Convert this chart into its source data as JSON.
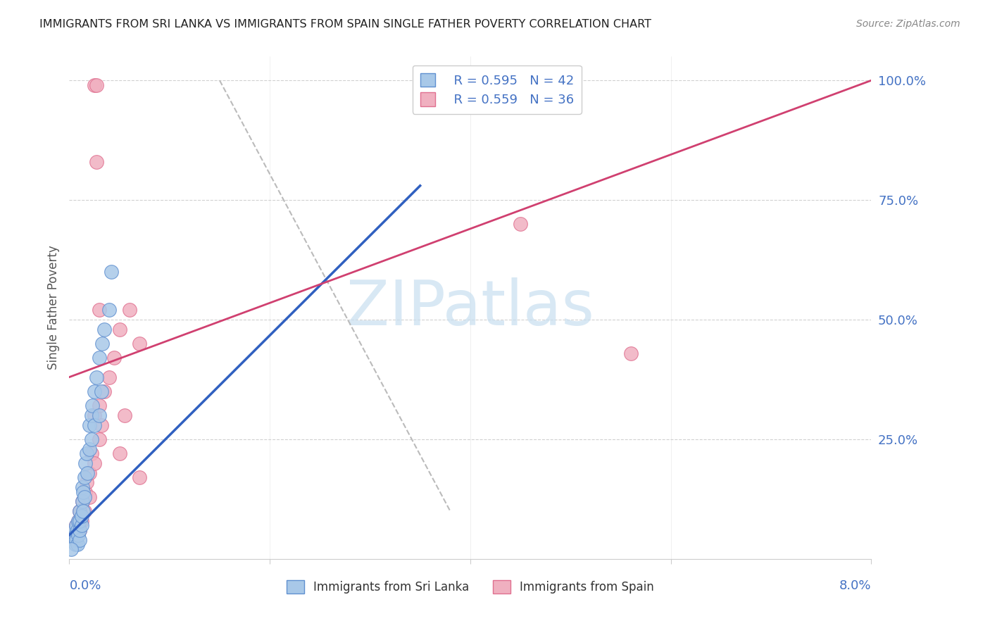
{
  "title": "IMMIGRANTS FROM SRI LANKA VS IMMIGRANTS FROM SPAIN SINGLE FATHER POVERTY CORRELATION CHART",
  "source": "Source: ZipAtlas.com",
  "ylabel": "Single Father Poverty",
  "y_tick_labels": [
    "25.0%",
    "50.0%",
    "75.0%",
    "100.0%"
  ],
  "y_tick_values": [
    0.25,
    0.5,
    0.75,
    1.0
  ],
  "legend_label_blue": "Immigrants from Sri Lanka",
  "legend_label_pink": "Immigrants from Spain",
  "legend_r_blue": "R = 0.595",
  "legend_n_blue": "N = 42",
  "legend_r_pink": "R = 0.559",
  "legend_n_pink": "N = 36",
  "blue_scatter_color": "#a8c8e8",
  "blue_edge_color": "#6090d0",
  "blue_line_color": "#3060c0",
  "pink_scatter_color": "#f0b0c0",
  "pink_edge_color": "#e07090",
  "pink_line_color": "#d04070",
  "dash_color": "#bbbbbb",
  "watermark_color": "#c8dff0",
  "x_min": 0.0,
  "x_max": 0.08,
  "y_min": 0.0,
  "y_max": 1.05,
  "blue_pts_x": [
    0.0003,
    0.0005,
    0.0005,
    0.0006,
    0.0006,
    0.0007,
    0.0007,
    0.0008,
    0.0008,
    0.0009,
    0.0009,
    0.001,
    0.001,
    0.001,
    0.001,
    0.0012,
    0.0012,
    0.0013,
    0.0013,
    0.0014,
    0.0014,
    0.0015,
    0.0015,
    0.0016,
    0.0017,
    0.0018,
    0.002,
    0.002,
    0.0022,
    0.0022,
    0.0023,
    0.0025,
    0.0025,
    0.0027,
    0.003,
    0.003,
    0.0032,
    0.0033,
    0.0035,
    0.004,
    0.0042,
    0.0002
  ],
  "blue_pts_y": [
    0.05,
    0.04,
    0.06,
    0.03,
    0.05,
    0.04,
    0.07,
    0.03,
    0.06,
    0.05,
    0.08,
    0.04,
    0.06,
    0.08,
    0.1,
    0.07,
    0.09,
    0.12,
    0.15,
    0.1,
    0.14,
    0.13,
    0.17,
    0.2,
    0.22,
    0.18,
    0.23,
    0.28,
    0.25,
    0.3,
    0.32,
    0.28,
    0.35,
    0.38,
    0.3,
    0.42,
    0.35,
    0.45,
    0.48,
    0.52,
    0.6,
    0.02
  ],
  "pink_pts_x": [
    0.0003,
    0.0005,
    0.0006,
    0.0007,
    0.0008,
    0.0009,
    0.001,
    0.001,
    0.0012,
    0.0013,
    0.0015,
    0.0016,
    0.0017,
    0.002,
    0.002,
    0.0022,
    0.0025,
    0.0025,
    0.003,
    0.003,
    0.0032,
    0.0035,
    0.004,
    0.0045,
    0.005,
    0.0055,
    0.006,
    0.007,
    0.045,
    0.056,
    0.0025,
    0.0027,
    0.0027,
    0.003,
    0.005,
    0.007
  ],
  "pink_pts_y": [
    0.06,
    0.05,
    0.04,
    0.07,
    0.05,
    0.08,
    0.06,
    0.1,
    0.08,
    0.12,
    0.1,
    0.14,
    0.16,
    0.13,
    0.18,
    0.22,
    0.2,
    0.3,
    0.25,
    0.32,
    0.28,
    0.35,
    0.38,
    0.42,
    0.48,
    0.3,
    0.52,
    0.45,
    0.7,
    0.43,
    0.99,
    0.99,
    0.83,
    0.52,
    0.22,
    0.17
  ],
  "blue_line_x": [
    0.0,
    0.035
  ],
  "blue_line_y": [
    0.05,
    0.78
  ],
  "pink_line_x": [
    0.0,
    0.08
  ],
  "pink_line_y": [
    0.38,
    1.0
  ],
  "dash_line_x": [
    0.015,
    0.038
  ],
  "dash_line_y": [
    1.0,
    0.1
  ]
}
